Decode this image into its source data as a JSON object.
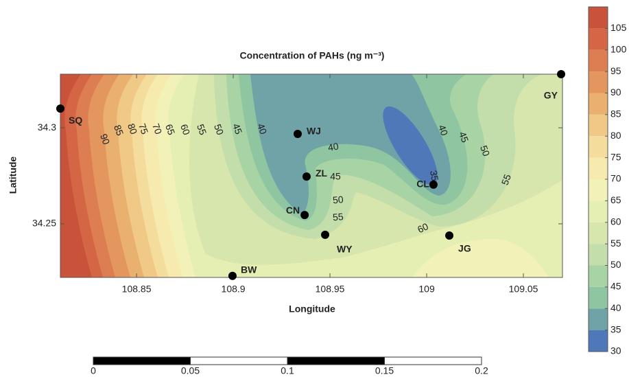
{
  "chart_data": {
    "type": "contour",
    "title": "Concentration of PAHs (ng m⁻³)",
    "x_label": "Longitude",
    "y_label": "Latitude",
    "xlim": [
      108.8106,
      109.0702
    ],
    "ylim": [
      34.2221,
      34.3279
    ],
    "xticks": [
      108.85,
      108.9,
      108.95,
      109,
      109.05
    ],
    "yticks": [
      34.25,
      34.3
    ],
    "stations": [
      {
        "name": "SQ",
        "lon": 108.8106,
        "lat": 34.31
      },
      {
        "name": "WJ",
        "lon": 108.9333,
        "lat": 34.2968
      },
      {
        "name": "ZL",
        "lon": 108.9379,
        "lat": 34.2746
      },
      {
        "name": "CN",
        "lon": 108.9369,
        "lat": 34.2546
      },
      {
        "name": "WY",
        "lon": 108.9475,
        "lat": 34.2443
      },
      {
        "name": "BW",
        "lon": 108.8996,
        "lat": 34.2229
      },
      {
        "name": "CL",
        "lon": 109.0035,
        "lat": 34.2704
      },
      {
        "name": "JG",
        "lon": 109.0117,
        "lat": 34.2439
      },
      {
        "name": "GY",
        "lon": 109.0695,
        "lat": 34.3279
      }
    ],
    "contour_labels": [
      90,
      85,
      80,
      75,
      70,
      65,
      60,
      55,
      50,
      45,
      40,
      40,
      45,
      50,
      55,
      35,
      40,
      45,
      50,
      55,
      60
    ],
    "colorbar": {
      "lim": [
        30,
        110
      ],
      "levels": [
        30,
        35,
        40,
        45,
        50,
        55,
        60,
        65,
        70,
        75,
        80,
        85,
        90,
        95,
        100,
        105,
        110
      ],
      "colors": [
        "#4f78b8",
        "#6fa3a8",
        "#8fc5a0",
        "#a8d3a4",
        "#c3deaa",
        "#d7e6ad",
        "#e6efb3",
        "#f1f1b8",
        "#f6eaae",
        "#f3dc9c",
        "#efc985",
        "#e9b070",
        "#e3975f",
        "#dd7e52",
        "#d46646",
        "#c8523a"
      ],
      "ticks": [
        30,
        35,
        40,
        45,
        50,
        55,
        60,
        65,
        70,
        75,
        80,
        85,
        90,
        95,
        100,
        105
      ]
    },
    "scale_bar": {
      "lim": [
        0,
        0.2
      ],
      "ticks": [
        0,
        0.05,
        0.1,
        0.15,
        0.2
      ]
    }
  }
}
